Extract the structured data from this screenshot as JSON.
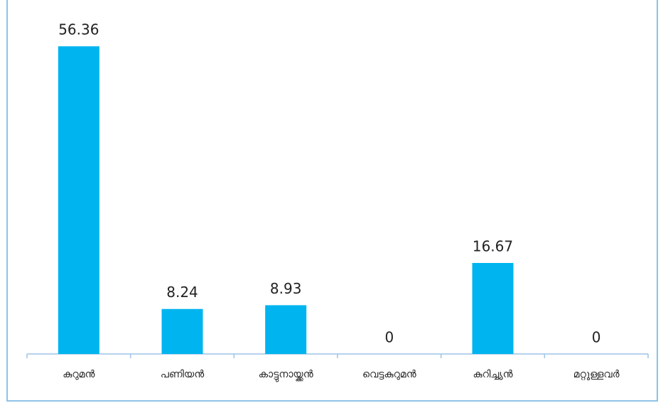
{
  "chart_data": {
    "type": "bar",
    "categories": [
      "കുറുമൻ",
      "പണിയൻ",
      "കാട്ടുനായ്ക്കൻ",
      "വെട്ടകുറുമൻ",
      "കുറിച്ച്യൻ",
      "മറ്റുള്ളവർ"
    ],
    "values": [
      56.36,
      8.24,
      8.93,
      0,
      16.67,
      0
    ],
    "color": "#00b4ef"
  }
}
